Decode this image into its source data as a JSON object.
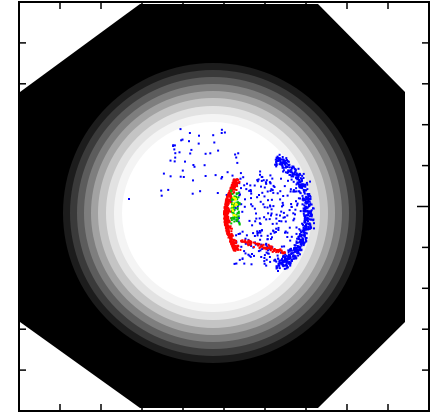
{
  "figure": {
    "type": "detector-hit-map",
    "background_color": "#ffffff",
    "frame_color": "#000000",
    "octagon_color": "#000000",
    "halo_colors": [
      "#1c1c1c",
      "#3a3a3a",
      "#5c5c5c",
      "#7e7e7e",
      "#a2a2a2",
      "#c4c4c4",
      "#e2e2e2",
      "#f4f4f4",
      "#ffffff"
    ],
    "hit_colors": {
      "sparse": "#0000ff",
      "dense": "#ff0000",
      "denser": "#00c000",
      "densest": "#ffff00"
    },
    "ticks": {
      "per_side": 10,
      "major_every": 5
    }
  }
}
